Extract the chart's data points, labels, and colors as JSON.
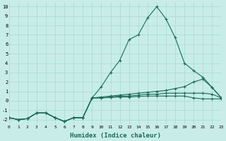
{
  "xlabel": "Humidex (Indice chaleur)",
  "bg_color": "#c8ede8",
  "grid_color": "#a8d8d0",
  "line_color": "#1a6b5a",
  "xlim": [
    0,
    23
  ],
  "ylim": [
    -2.5,
    10.5
  ],
  "xticks": [
    0,
    1,
    2,
    3,
    4,
    5,
    6,
    7,
    8,
    9,
    10,
    11,
    12,
    13,
    14,
    15,
    16,
    17,
    18,
    19,
    20,
    21,
    22,
    23
  ],
  "yticks": [
    -2,
    -1,
    0,
    1,
    2,
    3,
    4,
    5,
    6,
    7,
    8,
    9,
    10
  ],
  "series": [
    {
      "x": [
        0,
        1,
        2,
        3,
        4,
        5,
        6,
        7,
        8,
        9,
        10,
        11,
        12,
        13,
        14,
        15,
        16,
        17,
        18,
        19,
        20,
        21,
        22,
        23
      ],
      "y": [
        -1.8,
        -2.0,
        -1.9,
        -1.3,
        -1.3,
        -1.8,
        -2.2,
        -1.8,
        -1.8,
        0.3,
        1.5,
        3.0,
        4.3,
        6.5,
        7.0,
        8.8,
        10.0,
        8.7,
        6.7,
        4.0,
        3.2,
        2.5,
        1.4,
        0.3
      ]
    },
    {
      "x": [
        0,
        1,
        2,
        3,
        4,
        5,
        6,
        7,
        8,
        9,
        10,
        11,
        12,
        13,
        14,
        15,
        16,
        17,
        18,
        19,
        20,
        21,
        22,
        23
      ],
      "y": [
        -1.8,
        -2.0,
        -1.9,
        -1.3,
        -1.3,
        -1.8,
        -2.2,
        -1.8,
        -1.8,
        0.3,
        0.4,
        0.5,
        0.6,
        0.7,
        0.8,
        0.9,
        1.0,
        1.1,
        1.3,
        1.5,
        2.0,
        2.3,
        1.4,
        0.3
      ]
    },
    {
      "x": [
        0,
        1,
        2,
        3,
        4,
        5,
        6,
        7,
        8,
        9,
        10,
        11,
        12,
        13,
        14,
        15,
        16,
        17,
        18,
        19,
        20,
        21,
        22,
        23
      ],
      "y": [
        -1.8,
        -2.0,
        -1.9,
        -1.3,
        -1.3,
        -1.8,
        -2.2,
        -1.8,
        -1.8,
        0.3,
        0.3,
        0.4,
        0.5,
        0.5,
        0.6,
        0.7,
        0.7,
        0.8,
        0.8,
        0.8,
        0.8,
        0.8,
        0.7,
        0.3
      ]
    },
    {
      "x": [
        0,
        1,
        2,
        3,
        4,
        5,
        6,
        7,
        8,
        9,
        10,
        11,
        12,
        13,
        14,
        15,
        16,
        17,
        18,
        19,
        20,
        21,
        22,
        23
      ],
      "y": [
        -1.8,
        -2.0,
        -1.9,
        -1.3,
        -1.3,
        -1.8,
        -2.2,
        -1.8,
        -1.8,
        0.3,
        0.3,
        0.35,
        0.4,
        0.4,
        0.45,
        0.5,
        0.5,
        0.5,
        0.5,
        0.5,
        0.3,
        0.2,
        0.2,
        0.2
      ]
    }
  ]
}
